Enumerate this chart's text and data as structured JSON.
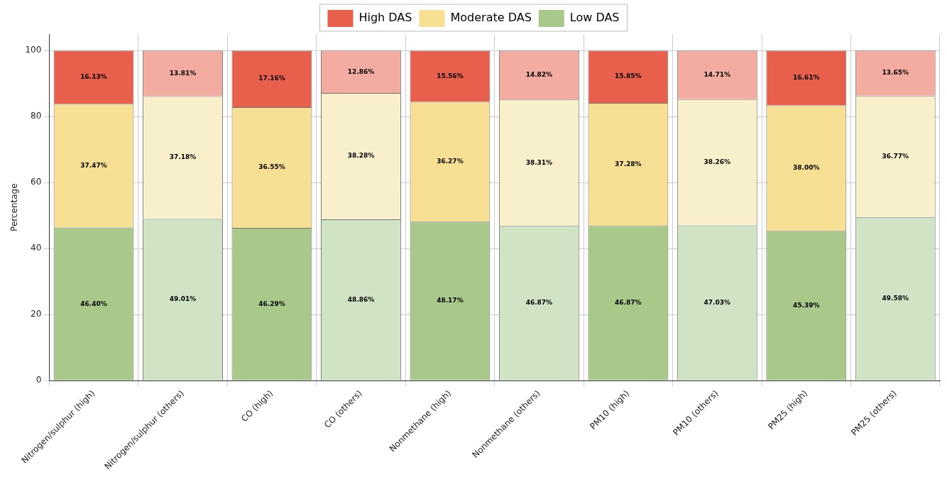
{
  "chart_data": {
    "type": "bar",
    "stacked": true,
    "ylabel": "Percentage",
    "categories": [
      "Nitrogen/sulphur (high)",
      "Nitrogen/sulphur (others)",
      "CO (high)",
      "CO (others)",
      "Nonmethane (high)",
      "Nonmethane (others)",
      "PM10 (high)",
      "PM10 (others)",
      "PM25 (high)",
      "PM25 (others)"
    ],
    "series": [
      {
        "name": "Low DAS",
        "color": "#a8c98a",
        "colors": [
          "#a8c98a",
          "#d0e3c4",
          "#a8c98a",
          "#d0e3c4",
          "#a8c98a",
          "#d0e3c4",
          "#a8c98a",
          "#d0e3c4",
          "#a8c98a",
          "#d0e3c4"
        ],
        "values": [
          46.4,
          49.01,
          46.29,
          48.86,
          48.17,
          46.87,
          46.87,
          47.03,
          45.39,
          49.58
        ],
        "value_labels": [
          "46.40%",
          "49.01%",
          "46.29%",
          "48.86%",
          "48.17%",
          "46.87%",
          "46.87%",
          "47.03%",
          "45.39%",
          "49.58%"
        ]
      },
      {
        "name": "Moderate DAS",
        "color": "#f7df94",
        "colors": [
          "#f7df94",
          "#f8efcb",
          "#f7df94",
          "#f8efcb",
          "#f7df94",
          "#f8efcb",
          "#f7df94",
          "#f8efcb",
          "#f7df94",
          "#f8efcb"
        ],
        "values": [
          37.47,
          37.18,
          36.55,
          38.28,
          36.27,
          38.31,
          37.28,
          38.26,
          38.0,
          36.77
        ],
        "value_labels": [
          "37.47%",
          "37.18%",
          "36.55%",
          "38.28%",
          "36.27%",
          "38.31%",
          "37.28%",
          "38.26%",
          "38.00%",
          "36.77%"
        ]
      },
      {
        "name": "High DAS",
        "color": "#e8604c",
        "colors": [
          "#e8604c",
          "#f4aba0",
          "#e8604c",
          "#f4aba0",
          "#e8604c",
          "#f4aba0",
          "#e8604c",
          "#f4aba0",
          "#e8604c",
          "#f4aba0"
        ],
        "values": [
          16.13,
          13.81,
          17.16,
          12.86,
          15.56,
          14.82,
          15.85,
          14.71,
          16.61,
          13.65
        ],
        "value_labels": [
          "16.13%",
          "13.81%",
          "17.16%",
          "12.86%",
          "15.56%",
          "14.82%",
          "15.85%",
          "14.71%",
          "16.61%",
          "13.65%"
        ]
      }
    ],
    "ylim": [
      0,
      105
    ],
    "yticks": [
      0,
      20,
      40,
      60,
      80,
      100
    ],
    "grid": true,
    "legend": "top"
  }
}
